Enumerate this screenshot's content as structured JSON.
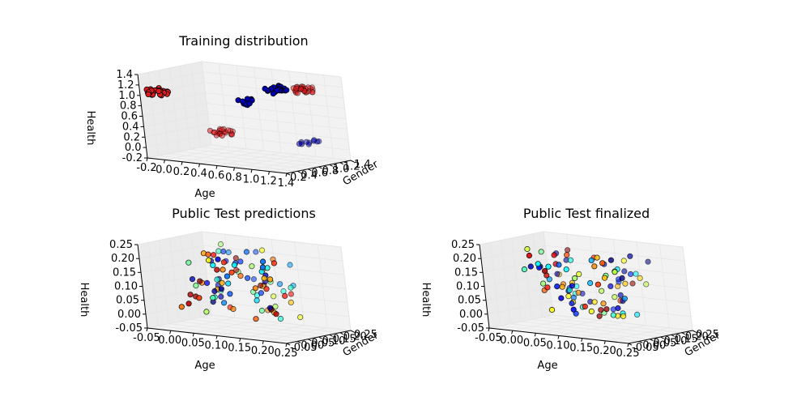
{
  "figure": {
    "background": "#ffffff",
    "pane_color": "#f2f2f2",
    "grid_color": "#e6e6e6"
  },
  "chart_data": [
    {
      "type": "scatter",
      "projection": "3d",
      "title": "Training distribution",
      "xlabel": "Age",
      "ylabel": "Gender",
      "zlabel": "Health",
      "xlim": [
        -0.2,
        1.4
      ],
      "ylim": [
        0.2,
        1.4
      ],
      "zlim": [
        -0.2,
        1.4
      ],
      "xticks": [
        "-0.2",
        "0.0",
        "0.2",
        "0.4",
        "0.6",
        "0.8",
        "1.0",
        "1.2",
        "1.4"
      ],
      "yticks": [
        "0.2",
        "0.4",
        "0.6",
        "0.8",
        "1.0",
        "1.2",
        "1.4"
      ],
      "zticks": [
        "-0.2",
        "0.0",
        "0.2",
        "0.4",
        "0.6",
        "0.8",
        "1.0",
        "1.2",
        "1.4"
      ],
      "grid": true,
      "clusters": [
        {
          "center": [
            0.0,
            0.2,
            1.1
          ],
          "color": "#e31a1c",
          "count": 26
        },
        {
          "center": [
            0.0,
            1.3,
            0.1
          ],
          "color": "#e31a1c",
          "count": 22
        },
        {
          "center": [
            1.0,
            0.2,
            1.1
          ],
          "color": "#0000b3",
          "count": 10
        },
        {
          "center": [
            1.0,
            1.3,
            0.1
          ],
          "color": "#0000b3",
          "count": 10
        },
        {
          "center": [
            1.0,
            1.3,
            1.1
          ],
          "color": "#e31a1c",
          "count": 28
        },
        {
          "center": [
            1.4,
            0.2,
            1.4
          ],
          "color": "#0000b3",
          "count": 30
        }
      ]
    },
    {
      "type": "scatter",
      "projection": "3d",
      "title": "Public Test predictions",
      "xlabel": "Age",
      "ylabel": "Gender",
      "zlabel": "Health",
      "xlim": [
        -0.05,
        0.25
      ],
      "ylim": [
        -0.05,
        0.25
      ],
      "zlim": [
        -0.05,
        0.27
      ],
      "xticks": [
        "-0.05",
        "0.00",
        "0.05",
        "0.10",
        "0.15",
        "0.20",
        "0.25"
      ],
      "yticks": [
        "-0.05",
        "0.00",
        "0.05",
        "0.10",
        "0.15",
        "0.20",
        "0.25"
      ],
      "zticks": [
        "-0.05",
        "0.00",
        "0.05",
        "0.10",
        "0.15",
        "0.20",
        "0.25"
      ],
      "grid": true,
      "points": 100,
      "seed": 7
    },
    {
      "type": "scatter",
      "projection": "3d",
      "title": "Public Test finalized",
      "xlabel": "Age",
      "ylabel": "Gender",
      "zlabel": "Health",
      "xlim": [
        -0.05,
        0.25
      ],
      "ylim": [
        -0.05,
        0.25
      ],
      "zlim": [
        -0.05,
        0.27
      ],
      "xticks": [
        "-0.05",
        "0.00",
        "0.05",
        "0.10",
        "0.15",
        "0.20",
        "0.25"
      ],
      "yticks": [
        "-0.05",
        "0.00",
        "0.05",
        "0.10",
        "0.15",
        "0.20",
        "0.25"
      ],
      "zticks": [
        "-0.05",
        "0.00",
        "0.05",
        "0.10",
        "0.15",
        "0.20",
        "0.25"
      ],
      "grid": true,
      "points": 100,
      "seed": 19
    }
  ]
}
